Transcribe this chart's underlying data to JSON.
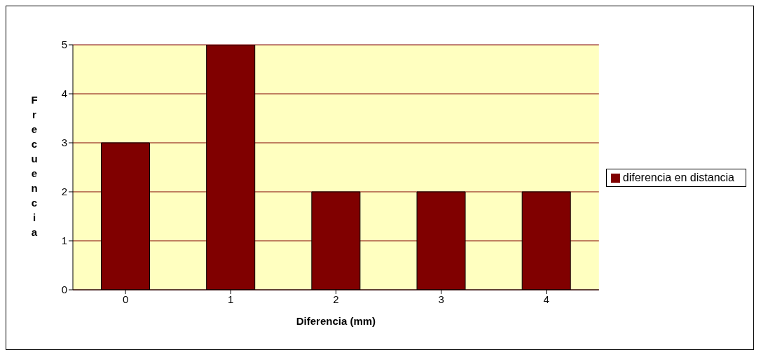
{
  "chart_data": {
    "type": "bar",
    "xlabel": "Diferencia (mm)",
    "ylabel": "Frecuencia",
    "categories": [
      "0",
      "1",
      "2",
      "3",
      "4"
    ],
    "series": [
      {
        "name": "diferencia en distancia",
        "color": "#800000",
        "values": [
          3,
          5,
          2,
          2,
          2
        ]
      }
    ],
    "ylim": [
      0,
      5
    ],
    "yticks": [
      0,
      1,
      2,
      3,
      4,
      5
    ],
    "grid": "y",
    "legend": "right"
  }
}
